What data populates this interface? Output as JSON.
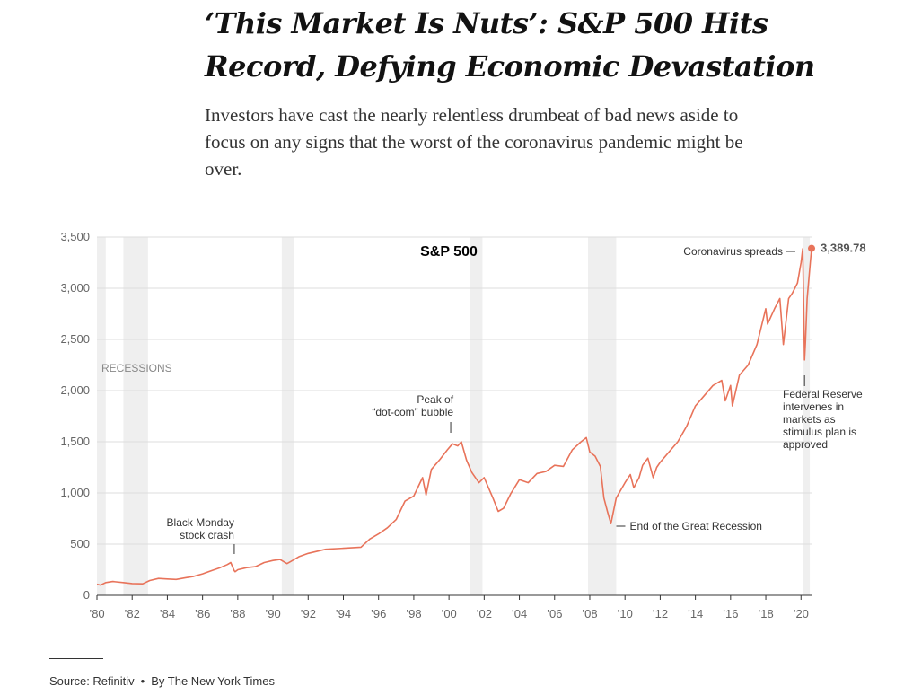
{
  "headline": "‘This Market Is Nuts’: S&P 500 Hits Record, Defying Economic Devastation",
  "dek": "Investors have cast the nearly relentless drumbeat of bad news aside to focus on any signs that the worst of the coronavirus pandemic might be over.",
  "source": {
    "text": "Source: Refinitiv",
    "separator": "•",
    "byline": "By The New York Times"
  },
  "colors": {
    "line": "#e8735a",
    "recession_band": "#efefef",
    "grid": "#dddddd"
  },
  "chart_data": {
    "type": "line",
    "title": "S&P 500",
    "recessions_label": "RECESSIONS",
    "last_value_label": "3,389.78",
    "ylim": [
      0,
      3500
    ],
    "xlim": [
      1980,
      2020.65
    ],
    "y_ticks": [
      0,
      500,
      1000,
      1500,
      2000,
      2500,
      3000,
      3500
    ],
    "y_tick_labels": [
      "0",
      "500",
      "1,000",
      "1,500",
      "2,000",
      "2,500",
      "3,000",
      "3,500"
    ],
    "x_ticks": [
      1980,
      1982,
      1984,
      1986,
      1988,
      1990,
      1992,
      1994,
      1996,
      1998,
      2000,
      2002,
      2004,
      2006,
      2008,
      2010,
      2012,
      2014,
      2016,
      2018,
      2020
    ],
    "x_tick_labels": [
      "’80",
      "’82",
      "’84",
      "’86",
      "’88",
      "’90",
      "’92",
      "’94",
      "’96",
      "’98",
      "’00",
      "’02",
      "’04",
      "’06",
      "’08",
      "’10",
      "’12",
      "’14",
      "’16",
      "’18",
      "’20"
    ],
    "recessions": [
      [
        1980.0,
        1980.5
      ],
      [
        1981.5,
        1982.9
      ],
      [
        1990.5,
        1991.2
      ],
      [
        2001.2,
        2001.9
      ],
      [
        2007.9,
        2009.5
      ],
      [
        2020.1,
        2020.5
      ]
    ],
    "annotations": [
      {
        "lines": [
          "Black Monday",
          "stock crash"
        ],
        "x": 1987.8,
        "y": 260
      },
      {
        "lines": [
          "Peak of",
          "“dot-com” bubble"
        ],
        "x": 2000.2,
        "y": 1520
      },
      {
        "lines": [
          "End of the Great Recession"
        ],
        "x": 2009.2,
        "y": 680
      },
      {
        "lines": [
          "Coronavirus spreads"
        ],
        "x": 2020.1,
        "y": 3386
      },
      {
        "lines": [
          "Federal Reserve",
          "intervenes in",
          "markets as",
          "stimulus plan is",
          "approved"
        ],
        "x": 2020.2,
        "y": 2237
      }
    ],
    "series": [
      {
        "x": [
          1980,
          1980.2,
          1980.5,
          1980.9,
          1981.5,
          1982.0,
          1982.6,
          1983.0,
          1983.5,
          1984.0,
          1984.5,
          1985.0,
          1985.5,
          1986.0,
          1986.5,
          1987.0,
          1987.4,
          1987.6,
          1987.8,
          1987.85,
          1988.0,
          1988.5,
          1989.0,
          1989.5,
          1990.0,
          1990.4,
          1990.8,
          1991.0,
          1991.5,
          1992.0,
          1993.0,
          1994.0,
          1995.0,
          1995.5,
          1996.0,
          1996.5,
          1997.0,
          1997.5,
          1998.0,
          1998.5,
          1998.7,
          1999.0,
          1999.5,
          1999.9,
          2000.2,
          2000.5,
          2000.7,
          2001.0,
          2001.3,
          2001.7,
          2002.0,
          2002.5,
          2002.8,
          2003.1,
          2003.5,
          2004.0,
          2004.5,
          2005.0,
          2005.5,
          2006.0,
          2006.5,
          2007.0,
          2007.5,
          2007.8,
          2008.0,
          2008.3,
          2008.6,
          2008.8,
          2009.0,
          2009.2,
          2009.5,
          2010.0,
          2010.3,
          2010.5,
          2010.8,
          2011.0,
          2011.3,
          2011.6,
          2011.8,
          2012.0,
          2012.5,
          2013.0,
          2013.5,
          2014.0,
          2014.5,
          2015.0,
          2015.5,
          2015.7,
          2016.0,
          2016.1,
          2016.5,
          2017.0,
          2017.5,
          2018.0,
          2018.1,
          2018.5,
          2018.8,
          2019.0,
          2019.3,
          2019.5,
          2019.8,
          2020.0,
          2020.1,
          2020.2,
          2020.25,
          2020.35,
          2020.45,
          2020.6
        ],
        "values": [
          108,
          100,
          125,
          135,
          125,
          115,
          112,
          145,
          165,
          160,
          155,
          170,
          185,
          210,
          240,
          270,
          300,
          320,
          240,
          230,
          250,
          270,
          280,
          320,
          340,
          350,
          310,
          330,
          380,
          410,
          450,
          460,
          470,
          550,
          600,
          660,
          740,
          920,
          970,
          1150,
          980,
          1230,
          1330,
          1420,
          1480,
          1460,
          1500,
          1320,
          1200,
          1100,
          1150,
          950,
          820,
          850,
          990,
          1130,
          1100,
          1190,
          1210,
          1270,
          1260,
          1420,
          1500,
          1540,
          1400,
          1360,
          1260,
          950,
          820,
          700,
          950,
          1100,
          1180,
          1050,
          1150,
          1270,
          1340,
          1150,
          1250,
          1300,
          1400,
          1500,
          1650,
          1850,
          1950,
          2050,
          2100,
          1900,
          2050,
          1850,
          2150,
          2250,
          2450,
          2800,
          2650,
          2800,
          2900,
          2450,
          2900,
          2950,
          3050,
          3250,
          3386,
          2300,
          2470,
          2900,
          3100,
          3389.78
        ]
      }
    ]
  }
}
